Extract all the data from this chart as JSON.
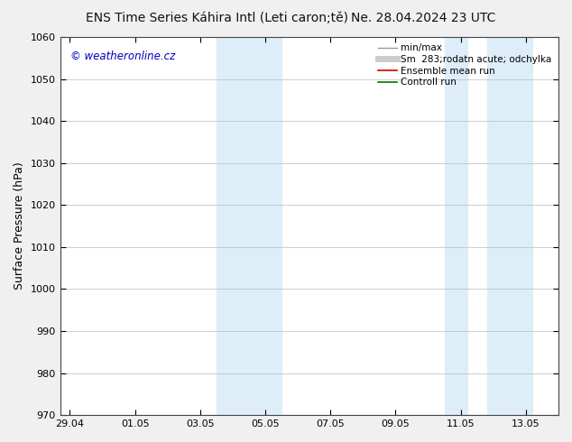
{
  "title": "ENS Time Series Káhira Intl (Leti caron;tě)",
  "title_right": "Ne. 28.04.2024 23 UTC",
  "ylabel": "Surface Pressure (hPa)",
  "ylim": [
    970,
    1060
  ],
  "yticks": [
    970,
    980,
    990,
    1000,
    1010,
    1020,
    1030,
    1040,
    1050,
    1060
  ],
  "xtick_labels": [
    "29.04",
    "01.05",
    "03.05",
    "05.05",
    "07.05",
    "09.05",
    "11.05",
    "13.05"
  ],
  "xtick_positions": [
    0,
    2,
    4,
    6,
    8,
    10,
    12,
    14
  ],
  "xlim": [
    -0.3,
    15.0
  ],
  "shaded_bands": [
    {
      "x_start": 4.5,
      "x_end": 5.5
    },
    {
      "x_start": 5.5,
      "x_end": 6.3
    },
    {
      "x_start": 11.5,
      "x_end": 12.3
    },
    {
      "x_start": 12.3,
      "x_end": 13.5
    }
  ],
  "band_color": "#ddeef8",
  "background_color": "#f0f0f0",
  "plot_bg_color": "#ffffff",
  "grid_color": "#bbbbbb",
  "watermark": "© weatheronline.cz",
  "watermark_color": "#0000bb",
  "legend_items": [
    {
      "label": "min/max",
      "color": "#999999",
      "lw": 1.0,
      "style": "-"
    },
    {
      "label": "Sm  283;rodatn acute; odchylka",
      "color": "#cccccc",
      "lw": 5,
      "style": "-"
    },
    {
      "label": "Ensemble mean run",
      "color": "#cc0000",
      "lw": 1.2,
      "style": "-"
    },
    {
      "label": "Controll run",
      "color": "#007700",
      "lw": 1.2,
      "style": "-"
    }
  ],
  "title_fontsize": 10,
  "tick_fontsize": 8,
  "ylabel_fontsize": 9,
  "legend_fontsize": 7.5
}
